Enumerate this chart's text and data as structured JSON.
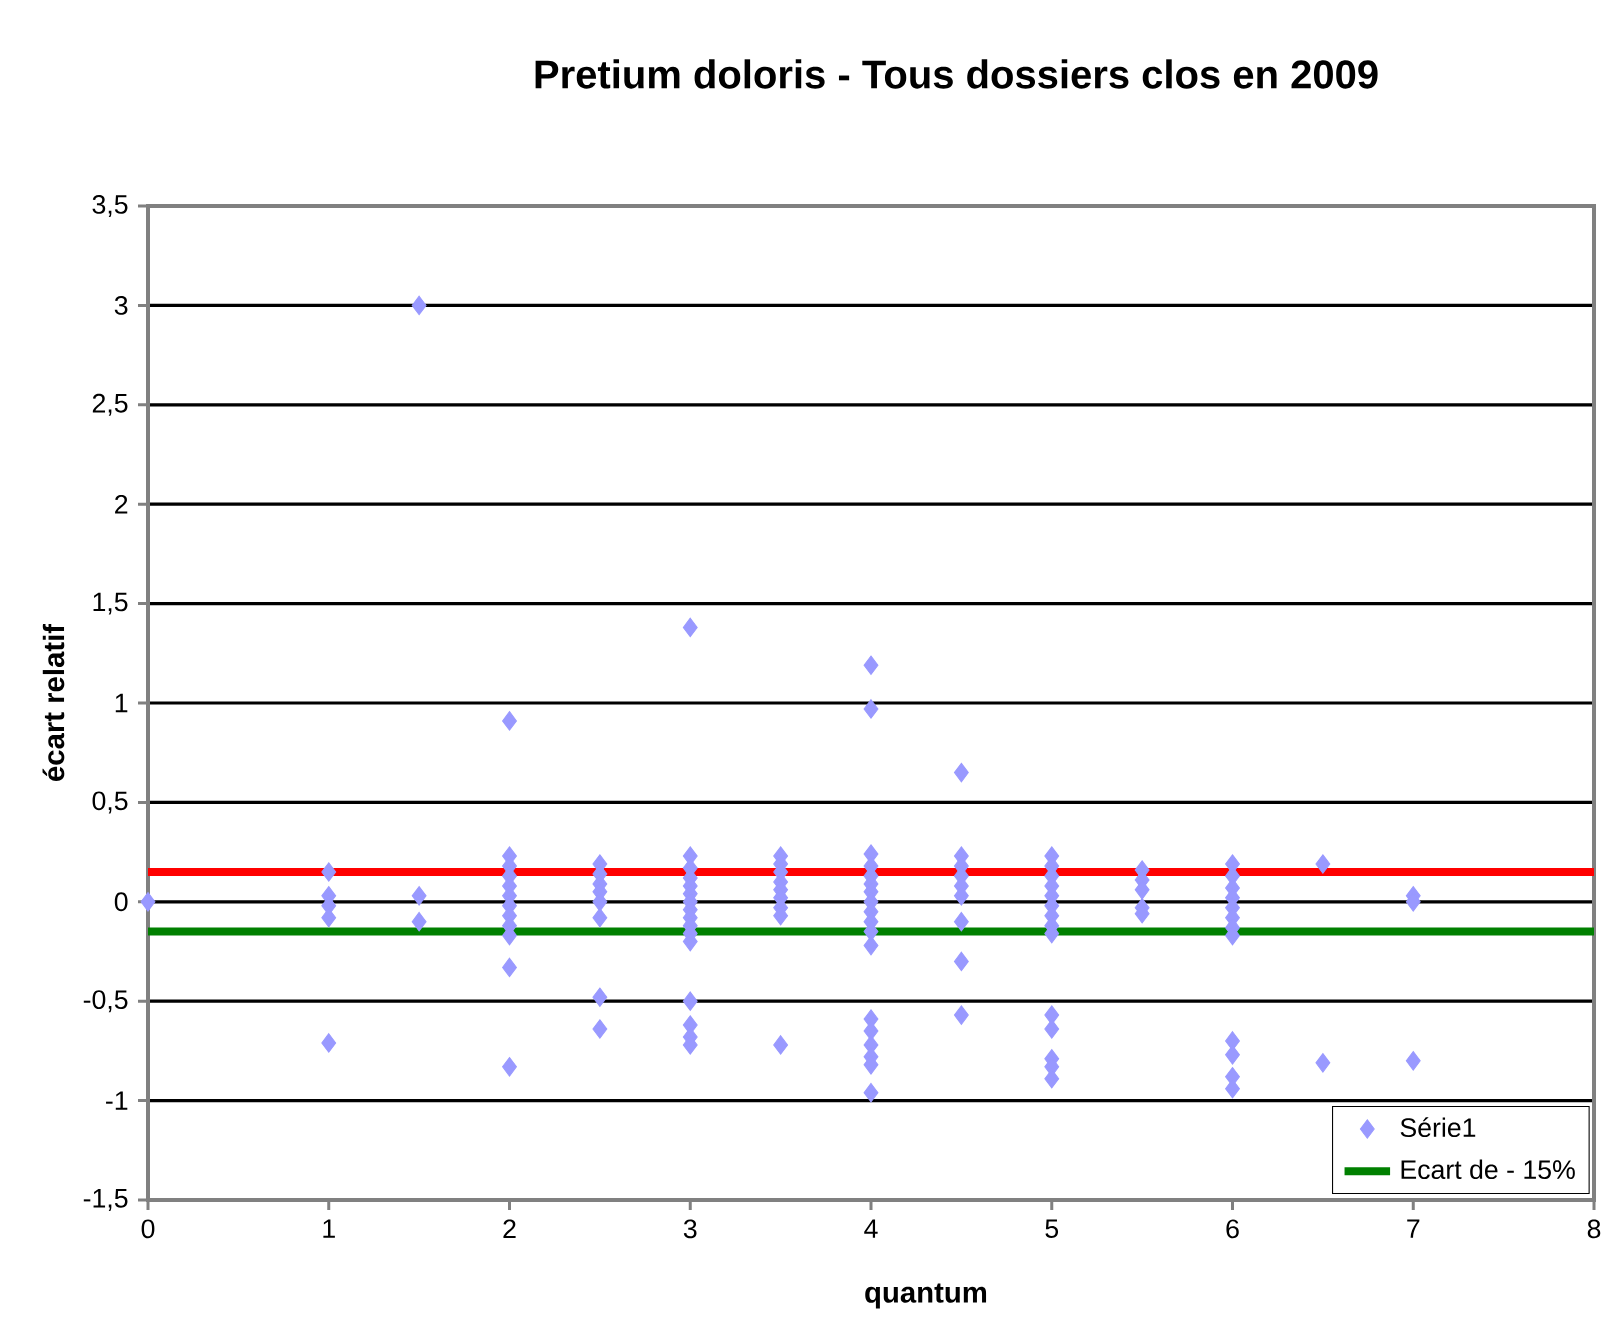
{
  "chart_data": {
    "type": "scatter",
    "title": "Pretium doloris - Tous dossiers clos en 2009",
    "xlabel": "quantum",
    "ylabel": "écart relatif",
    "xlim": [
      0,
      8
    ],
    "xticks": [
      0,
      1,
      2,
      3,
      4,
      5,
      6,
      7,
      8
    ],
    "ylim": [
      -1.5,
      3.5
    ],
    "yticks": [
      {
        "value": -1.5,
        "label": "-1,5"
      },
      -1,
      {
        "value": -0.5,
        "label": "-0,5"
      },
      0,
      {
        "value": 0.5,
        "label": "0,5"
      },
      1,
      {
        "value": 1.5,
        "label": "1,5"
      },
      2,
      {
        "value": 2.5,
        "label": "2,5"
      },
      3,
      {
        "value": 3.5,
        "label": "3,5"
      }
    ],
    "grid": "y",
    "legend": "bottom right",
    "series": [
      {
        "name": "Série1",
        "color": "#9999ff",
        "marker": "diamond",
        "x": [
          0,
          1,
          1,
          1,
          1,
          1,
          1.5,
          1.5,
          1.5,
          2,
          2,
          2,
          2,
          2,
          2,
          2,
          2,
          2,
          2,
          2,
          2,
          2.5,
          2.5,
          2.5,
          2.5,
          2.5,
          2.5,
          2.5,
          2.5,
          3,
          3,
          3,
          3,
          3,
          3,
          3,
          3,
          3,
          3,
          3,
          3,
          3,
          3,
          3,
          3,
          3.5,
          3.5,
          3.5,
          3.5,
          3.5,
          3.5,
          3.5,
          3.5,
          3.5,
          4,
          4,
          4,
          4,
          4,
          4,
          4,
          4,
          4,
          4,
          4,
          4,
          4,
          4,
          4,
          4,
          4,
          4,
          4.5,
          4.5,
          4.5,
          4.5,
          4.5,
          4.5,
          4.5,
          4.5,
          4.5,
          5,
          5,
          5,
          5,
          5,
          5,
          5,
          5,
          5,
          5,
          5,
          5,
          5,
          5,
          5.5,
          5.5,
          5.5,
          5.5,
          5.5,
          6,
          6,
          6,
          6,
          6,
          6,
          6,
          6,
          6,
          6,
          6,
          6,
          6.5,
          6.5,
          7,
          7,
          7
        ],
        "values": [
          0,
          0.15,
          0.03,
          -0.02,
          -0.08,
          -0.71,
          3.0,
          0.03,
          -0.1,
          0.91,
          0.23,
          0.18,
          0.13,
          0.08,
          0.03,
          -0.02,
          -0.07,
          -0.12,
          -0.17,
          -0.33,
          -0.83,
          0.19,
          0.14,
          0.09,
          0.05,
          0.0,
          -0.08,
          -0.48,
          -0.64,
          1.38,
          0.23,
          0.17,
          0.12,
          0.08,
          0.04,
          0.0,
          -0.04,
          -0.08,
          -0.12,
          -0.16,
          -0.2,
          -0.5,
          -0.62,
          -0.68,
          -0.72,
          0.23,
          0.19,
          0.15,
          0.1,
          0.06,
          0.02,
          -0.03,
          -0.07,
          -0.72,
          1.19,
          0.97,
          0.24,
          0.18,
          0.13,
          0.09,
          0.05,
          0.0,
          -0.05,
          -0.1,
          -0.15,
          -0.22,
          -0.59,
          -0.65,
          -0.72,
          -0.78,
          -0.82,
          -0.96,
          0.65,
          0.23,
          0.18,
          0.13,
          0.08,
          0.03,
          -0.1,
          -0.3,
          -0.57,
          0.23,
          0.18,
          0.13,
          0.08,
          0.03,
          -0.02,
          -0.07,
          -0.12,
          -0.16,
          -0.57,
          -0.64,
          -0.79,
          -0.83,
          -0.89,
          0.16,
          0.11,
          0.06,
          -0.03,
          -0.06,
          0.19,
          0.13,
          0.07,
          0.02,
          -0.03,
          -0.08,
          -0.13,
          -0.17,
          -0.7,
          -0.77,
          -0.88,
          -0.94,
          0.19,
          -0.81,
          0.03,
          0.0,
          -0.8
        ]
      },
      {
        "type": "line",
        "color": "#ff0000",
        "x": [
          0,
          8
        ],
        "values": [
          0.15,
          0.15
        ]
      },
      {
        "name": "Ecart de - 15%",
        "type": "line",
        "color": "#008000",
        "x": [
          0,
          8
        ],
        "values": [
          -0.15,
          -0.15
        ]
      }
    ]
  }
}
